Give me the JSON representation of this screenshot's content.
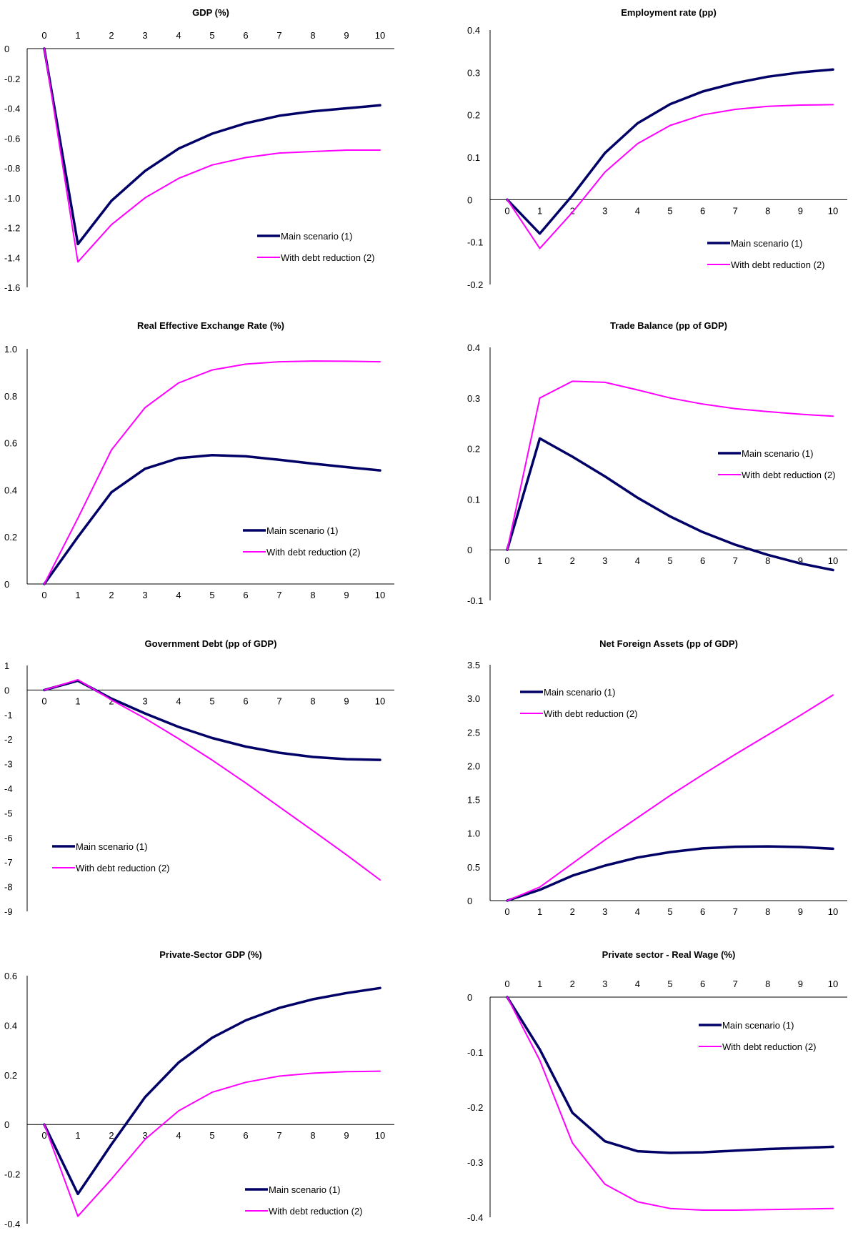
{
  "colors": {
    "main": "#000066",
    "debt": "#ff00ff"
  },
  "chart_data": [
    {
      "type": "line",
      "title": "GDP (%)",
      "x": [
        0,
        1,
        2,
        3,
        4,
        5,
        6,
        7,
        8,
        9,
        10
      ],
      "xticks": [
        "0",
        "1",
        "2",
        "3",
        "4",
        "5",
        "6",
        "7",
        "8",
        "9",
        "10"
      ],
      "ylim": [
        -1.6,
        0
      ],
      "yticks": [
        "0",
        "-0.2",
        "-0.4",
        "-0.6",
        "-0.8",
        "-1.0",
        "-1.2",
        "-1.4",
        "-1.6"
      ],
      "ytick_values": [
        0,
        -0.2,
        -0.4,
        -0.6,
        -0.8,
        -1.0,
        -1.2,
        -1.4,
        -1.6
      ],
      "xaxis_at": 0,
      "xlabels_position": "top",
      "legend_position": "bottom-right",
      "series": [
        {
          "name": "Main scenario (1)",
          "color_key": "main",
          "values": [
            0,
            -1.31,
            -1.02,
            -0.82,
            -0.67,
            -0.57,
            -0.5,
            -0.45,
            -0.42,
            -0.4,
            -0.38
          ]
        },
        {
          "name": "With debt reduction (2)",
          "color_key": "debt",
          "values": [
            0,
            -1.43,
            -1.18,
            -1.0,
            -0.87,
            -0.78,
            -0.73,
            -0.7,
            -0.69,
            -0.68,
            -0.68
          ]
        }
      ]
    },
    {
      "type": "line",
      "title": "Employment rate (pp)",
      "x": [
        0,
        1,
        2,
        3,
        4,
        5,
        6,
        7,
        8,
        9,
        10
      ],
      "xticks": [
        "0",
        "1",
        "2",
        "3",
        "4",
        "5",
        "6",
        "7",
        "8",
        "9",
        "10"
      ],
      "ylim": [
        -0.2,
        0.4
      ],
      "yticks": [
        "0.4",
        "0.3",
        "0.2",
        "0.1",
        "0",
        "-0.1",
        "-0.2"
      ],
      "ytick_values": [
        0.4,
        0.3,
        0.2,
        0.1,
        0,
        -0.1,
        -0.2
      ],
      "xaxis_at": 0,
      "xlabels_position": "axis",
      "legend_position": "bottom-right",
      "series": [
        {
          "name": "Main scenario (1)",
          "color_key": "main",
          "values": [
            0,
            -0.08,
            0.01,
            0.11,
            0.18,
            0.225,
            0.255,
            0.275,
            0.29,
            0.3,
            0.307
          ]
        },
        {
          "name": "With debt reduction (2)",
          "color_key": "debt",
          "values": [
            0,
            -0.115,
            -0.03,
            0.065,
            0.132,
            0.175,
            0.2,
            0.213,
            0.22,
            0.223,
            0.224
          ]
        }
      ]
    },
    {
      "type": "line",
      "title": "Real Effective Exchange Rate (%)",
      "x": [
        0,
        1,
        2,
        3,
        4,
        5,
        6,
        7,
        8,
        9,
        10
      ],
      "xticks": [
        "0",
        "1",
        "2",
        "3",
        "4",
        "5",
        "6",
        "7",
        "8",
        "9",
        "10"
      ],
      "ylim": [
        0,
        1.0
      ],
      "yticks": [
        "1.0",
        "0.8",
        "0.6",
        "0.4",
        "0.2",
        "0"
      ],
      "ytick_values": [
        1.0,
        0.8,
        0.6,
        0.4,
        0.2,
        0
      ],
      "xaxis_at": 0,
      "xlabels_position": "axis",
      "legend_position": "bottom-right",
      "series": [
        {
          "name": "Main scenario (1)",
          "color_key": "main",
          "values": [
            0,
            0.2,
            0.39,
            0.49,
            0.535,
            0.548,
            0.543,
            0.528,
            0.512,
            0.497,
            0.483
          ]
        },
        {
          "name": "With debt reduction (2)",
          "color_key": "debt",
          "values": [
            0,
            0.28,
            0.57,
            0.75,
            0.855,
            0.91,
            0.935,
            0.945,
            0.948,
            0.947,
            0.945
          ]
        }
      ]
    },
    {
      "type": "line",
      "title": "Trade Balance (pp of GDP)",
      "x": [
        0,
        1,
        2,
        3,
        4,
        5,
        6,
        7,
        8,
        9,
        10
      ],
      "xticks": [
        "0",
        "1",
        "2",
        "3",
        "4",
        "5",
        "6",
        "7",
        "8",
        "9",
        "10"
      ],
      "ylim": [
        -0.1,
        0.4
      ],
      "yticks": [
        "0.4",
        "0.3",
        "0.2",
        "0.1",
        "0",
        "-0.1"
      ],
      "ytick_values": [
        0.4,
        0.3,
        0.2,
        0.1,
        0,
        -0.1
      ],
      "xaxis_at": 0,
      "xlabels_position": "axis",
      "legend_position": "right",
      "series": [
        {
          "name": "Main scenario (1)",
          "color_key": "main",
          "values": [
            0,
            0.22,
            0.184,
            0.145,
            0.103,
            0.066,
            0.035,
            0.01,
            -0.01,
            -0.027,
            -0.04
          ]
        },
        {
          "name": "With debt reduction (2)",
          "color_key": "debt",
          "values": [
            0,
            0.3,
            0.333,
            0.331,
            0.316,
            0.3,
            0.288,
            0.279,
            0.273,
            0.268,
            0.264
          ]
        }
      ]
    },
    {
      "type": "line",
      "title": "Government Debt (pp of GDP)",
      "x": [
        0,
        1,
        2,
        3,
        4,
        5,
        6,
        7,
        8,
        9,
        10
      ],
      "xticks": [
        "0",
        "1",
        "2",
        "3",
        "4",
        "5",
        "6",
        "7",
        "8",
        "9",
        "10"
      ],
      "ylim": [
        -9,
        1
      ],
      "yticks": [
        "1",
        "0",
        "-1",
        "-2",
        "-3",
        "-4",
        "-5",
        "-6",
        "-7",
        "-8",
        "-9"
      ],
      "ytick_values": [
        1,
        0,
        -1,
        -2,
        -3,
        -4,
        -5,
        -6,
        -7,
        -8,
        -9
      ],
      "xaxis_at": 0,
      "xlabels_position": "axis",
      "legend_position": "bottom-left",
      "series": [
        {
          "name": "Main scenario (1)",
          "color_key": "main",
          "values": [
            0,
            0.38,
            -0.35,
            -0.95,
            -1.5,
            -1.95,
            -2.3,
            -2.55,
            -2.72,
            -2.81,
            -2.84
          ]
        },
        {
          "name": "With debt reduction (2)",
          "color_key": "debt",
          "values": [
            0,
            0.42,
            -0.4,
            -1.15,
            -1.98,
            -2.85,
            -3.78,
            -4.75,
            -5.72,
            -6.7,
            -7.72
          ]
        }
      ]
    },
    {
      "type": "line",
      "title": "Net Foreign Assets (pp of GDP)",
      "x": [
        0,
        1,
        2,
        3,
        4,
        5,
        6,
        7,
        8,
        9,
        10
      ],
      "xticks": [
        "0",
        "1",
        "2",
        "3",
        "4",
        "5",
        "6",
        "7",
        "8",
        "9",
        "10"
      ],
      "ylim": [
        0,
        3.5
      ],
      "yticks": [
        "3.5",
        "3.0",
        "2.5",
        "2.0",
        "1.5",
        "1.0",
        "0.5",
        "0"
      ],
      "ytick_values": [
        3.5,
        3.0,
        2.5,
        2.0,
        1.5,
        1.0,
        0.5,
        0
      ],
      "xaxis_at": 0,
      "xlabels_position": "axis",
      "legend_position": "top-left",
      "series": [
        {
          "name": "Main scenario (1)",
          "color_key": "main",
          "values": [
            0,
            0.16,
            0.37,
            0.52,
            0.64,
            0.72,
            0.775,
            0.8,
            0.805,
            0.795,
            0.77
          ]
        },
        {
          "name": "With debt reduction (2)",
          "color_key": "debt",
          "values": [
            0,
            0.2,
            0.55,
            0.9,
            1.23,
            1.56,
            1.87,
            2.17,
            2.46,
            2.75,
            3.05
          ]
        }
      ]
    },
    {
      "type": "line",
      "title": "Private-Sector GDP (%)",
      "x": [
        0,
        1,
        2,
        3,
        4,
        5,
        6,
        7,
        8,
        9,
        10
      ],
      "xticks": [
        "0",
        "1",
        "2",
        "3",
        "4",
        "5",
        "6",
        "7",
        "8",
        "9",
        "10"
      ],
      "ylim": [
        -0.4,
        0.6
      ],
      "yticks": [
        "0.6",
        "0.4",
        "0.2",
        "0",
        "-0.2",
        "-0.4"
      ],
      "ytick_values": [
        0.6,
        0.4,
        0.2,
        0,
        -0.2,
        -0.4
      ],
      "xaxis_at": 0,
      "xlabels_position": "axis",
      "legend_position": "bottom-right",
      "series": [
        {
          "name": "Main scenario (1)",
          "color_key": "main",
          "values": [
            0,
            -0.28,
            -0.08,
            0.11,
            0.25,
            0.35,
            0.42,
            0.47,
            0.505,
            0.53,
            0.55
          ]
        },
        {
          "name": "With debt reduction (2)",
          "color_key": "debt",
          "values": [
            0,
            -0.37,
            -0.22,
            -0.06,
            0.055,
            0.13,
            0.17,
            0.195,
            0.207,
            0.213,
            0.215
          ]
        }
      ]
    },
    {
      "type": "line",
      "title": "Private sector - Real Wage (%)",
      "x": [
        0,
        1,
        2,
        3,
        4,
        5,
        6,
        7,
        8,
        9,
        10
      ],
      "xticks": [
        "0",
        "1",
        "2",
        "3",
        "4",
        "5",
        "6",
        "7",
        "8",
        "9",
        "10"
      ],
      "ylim": [
        -0.4,
        0
      ],
      "yticks": [
        "0",
        "-0.1",
        "-0.2",
        "-0.3",
        "-0.4"
      ],
      "ytick_values": [
        0,
        -0.1,
        -0.2,
        -0.3,
        -0.4
      ],
      "xaxis_at": 0,
      "xlabels_position": "top",
      "legend_position": "top-right",
      "series": [
        {
          "name": "Main scenario (1)",
          "color_key": "main",
          "values": [
            0,
            -0.095,
            -0.21,
            -0.262,
            -0.28,
            -0.283,
            -0.282,
            -0.279,
            -0.276,
            -0.274,
            -0.272
          ]
        },
        {
          "name": "With debt reduction (2)",
          "color_key": "debt",
          "values": [
            0,
            -0.115,
            -0.265,
            -0.34,
            -0.372,
            -0.384,
            -0.387,
            -0.387,
            -0.386,
            -0.385,
            -0.384
          ]
        }
      ]
    }
  ]
}
